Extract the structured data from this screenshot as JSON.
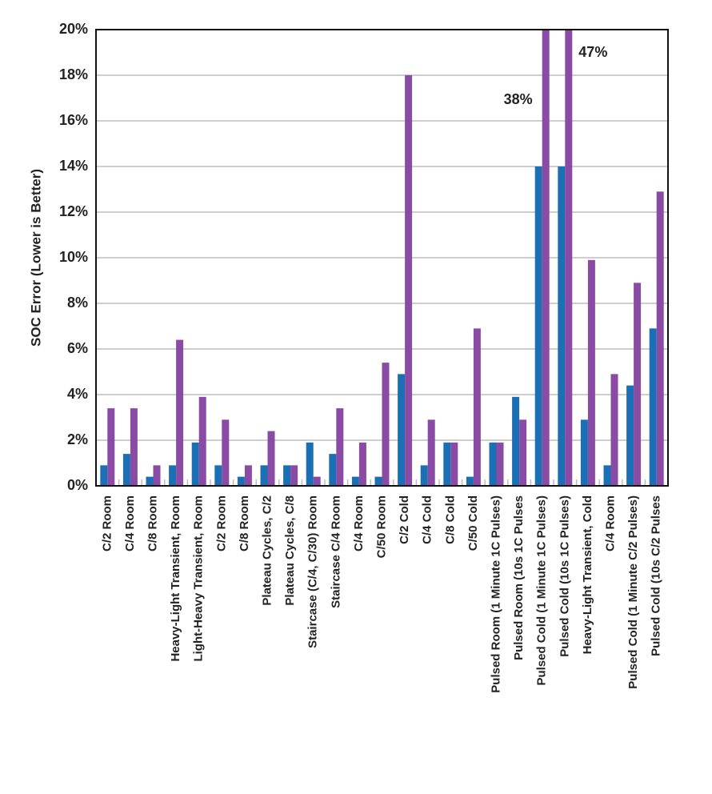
{
  "chart_data": {
    "type": "bar",
    "y_label": "SOC Error (Lower is Better)",
    "categories": [
      "C/2 Room",
      "C/4 Room",
      "C/8 Room",
      "Heavy-Light Transient, Room",
      "Light-Heavy Transient, Room",
      "C/2 Room",
      "C/8 Room",
      "Plateau Cycles, C/2",
      "Plateau Cycles, C/8",
      "Staircase (C/4, C/30) Room",
      "Staircase C/4 Room",
      "C/4 Room",
      "C/50 Room",
      "C/2 Cold",
      "C/4 Cold",
      "C/8 Cold",
      "C/50 Cold",
      "Pulsed Room (1 Minute 1C Pulses)",
      "Pulsed Room (10s 1C Pulses",
      "Pulsed Cold (1 Minute 1C Pulses)",
      "Pulsed Cold (10s 1C Pulses)",
      "Heavy-Light Transient, Cold",
      "C/4 Room",
      "Pulsed Cold (1 Minute C/2 Pulses)",
      "Pulsed Cold (10s C/2 Pulses"
    ],
    "series": [
      {
        "color": "#1a6fb5",
        "values": [
          0.9,
          1.4,
          0.4,
          0.9,
          1.9,
          0.9,
          0.4,
          0.9,
          0.9,
          1.9,
          1.4,
          0.4,
          0.4,
          4.9,
          0.9,
          1.9,
          0.4,
          1.9,
          3.9,
          14,
          14,
          2.9,
          0.9,
          4.4,
          6.9
        ]
      },
      {
        "color": "#8a4ba5",
        "values": [
          3.4,
          3.4,
          0.9,
          6.4,
          3.9,
          2.9,
          0.9,
          2.4,
          0.9,
          0.4,
          3.4,
          1.9,
          5.4,
          18,
          2.9,
          1.9,
          6.9,
          1.9,
          2.9,
          38,
          47,
          9.9,
          4.9,
          8.9,
          12.9
        ],
        "value_labels": [
          null,
          null,
          null,
          null,
          null,
          null,
          null,
          null,
          null,
          null,
          null,
          null,
          null,
          null,
          null,
          null,
          null,
          null,
          null,
          "38%",
          "47%",
          null,
          null,
          null,
          null
        ]
      }
    ],
    "ylim": [
      0,
      20
    ],
    "yticks": [
      {
        "value": 0,
        "label": "0%"
      },
      {
        "value": 2,
        "label": "2%"
      },
      {
        "value": 4,
        "label": "4%"
      },
      {
        "value": 6,
        "label": "6%"
      },
      {
        "value": 8,
        "label": "8%"
      },
      {
        "value": 10,
        "label": "10%"
      },
      {
        "value": 12,
        "label": "12%"
      },
      {
        "value": 14,
        "label": "14%"
      },
      {
        "value": 16,
        "label": "16%"
      },
      {
        "value": 18,
        "label": "18%"
      },
      {
        "value": 20,
        "label": "20%"
      }
    ],
    "grid": true
  }
}
